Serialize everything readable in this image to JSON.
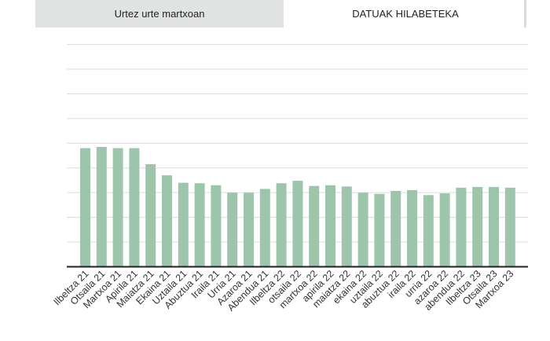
{
  "tabs": [
    {
      "label": "Urtez urte martxoan",
      "active": false
    },
    {
      "label": "DATUAK HILABETEKA",
      "active": true
    }
  ],
  "colors": {
    "bar": "#9cc5ac",
    "grid": "#dcdcdc",
    "axis": "#222222",
    "inactive_tab": "#e0e3e1"
  },
  "chart_data": {
    "type": "bar",
    "categories": [
      "Ilbeltza 21",
      "Otsaila 21",
      "Martxoa 21",
      "Apirila 21",
      "Maiatza 21",
      "Ekaina 21",
      "Uztaila 21",
      "Abuztua 21",
      "Iraila 21",
      "Urria 21",
      "Azaroa 21",
      "Abendua 21",
      "Ilbeltza 22",
      "otsaila 22",
      "martxoa 22",
      "apirila 22",
      "maiatza 22",
      "ekaina 22",
      "uztaila 22",
      "abuztua 22",
      "iraila 22",
      "urria 22",
      "azaroa 22",
      "abendua 22",
      "Ilbeltza 23",
      "Otsaila 23",
      "Martxoa 23"
    ],
    "values": [
      4.8,
      4.85,
      4.8,
      4.8,
      4.15,
      3.7,
      3.4,
      3.38,
      3.3,
      3.0,
      3.0,
      3.15,
      3.38,
      3.48,
      3.27,
      3.3,
      3.25,
      3.0,
      2.95,
      3.07,
      3.1,
      2.9,
      2.97,
      3.2,
      3.23,
      3.23,
      3.2
    ],
    "ylim": [
      0,
      9
    ],
    "grid": true,
    "title": "",
    "xlabel": "",
    "ylabel": ""
  }
}
